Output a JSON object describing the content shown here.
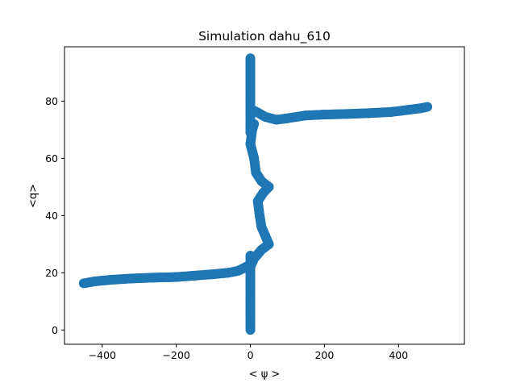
{
  "chart_data": {
    "type": "scatter",
    "title": "Simulation dahu_610",
    "xlabel": "< ψ >",
    "ylabel": "<q>",
    "xlim": [
      -502,
      578
    ],
    "ylim": [
      -5,
      99
    ],
    "xticks": [
      -400,
      -200,
      0,
      200,
      400
    ],
    "xtick_labels": [
      "−400",
      "−200",
      "0",
      "200",
      "400"
    ],
    "yticks": [
      0,
      20,
      40,
      60,
      80
    ],
    "ytick_labels": [
      "0",
      "20",
      "40",
      "60",
      "80"
    ],
    "grid": false,
    "series": [
      {
        "name": "trajectory",
        "color": "#1f77b4",
        "segments": [
          {
            "part": "lower-left branch",
            "points": [
              [
                -450,
                16.3
              ],
              [
                -420,
                17.0
              ],
              [
                -380,
                17.5
              ],
              [
                -320,
                18.0
              ],
              [
                -260,
                18.3
              ],
              [
                -200,
                18.5
              ],
              [
                -150,
                19.0
              ],
              [
                -100,
                19.5
              ],
              [
                -60,
                20.0
              ],
              [
                -35,
                20.6
              ],
              [
                -20,
                21.5
              ],
              [
                -5,
                22.5
              ]
            ]
          },
          {
            "part": "lower spike",
            "points": [
              [
                0,
                0
              ],
              [
                0,
                10
              ],
              [
                0,
                20
              ],
              [
                0,
                26
              ]
            ]
          },
          {
            "part": "lower core",
            "points": [
              [
                0,
                22
              ],
              [
                10,
                25
              ],
              [
                30,
                28
              ],
              [
                50,
                30
              ],
              [
                40,
                33
              ],
              [
                30,
                36
              ],
              [
                25,
                40
              ],
              [
                20,
                45
              ],
              [
                35,
                48
              ],
              [
                50,
                50
              ],
              [
                30,
                52
              ],
              [
                15,
                55
              ],
              [
                10,
                60
              ],
              [
                0,
                65
              ],
              [
                5,
                70
              ],
              [
                10,
                72
              ]
            ]
          },
          {
            "part": "upper spike",
            "points": [
              [
                0,
                69
              ],
              [
                0,
                80
              ],
              [
                0,
                88
              ],
              [
                0,
                95
              ]
            ]
          },
          {
            "part": "upper-right branch",
            "points": [
              [
                5,
                77
              ],
              [
                20,
                76
              ],
              [
                40,
                74.5
              ],
              [
                70,
                73.5
              ],
              [
                100,
                74.0
              ],
              [
                150,
                75.0
              ],
              [
                200,
                75.3
              ],
              [
                260,
                75.5
              ],
              [
                320,
                75.8
              ],
              [
                380,
                76.2
              ],
              [
                430,
                77.0
              ],
              [
                460,
                77.5
              ],
              [
                478,
                78.0
              ]
            ]
          }
        ]
      }
    ]
  }
}
